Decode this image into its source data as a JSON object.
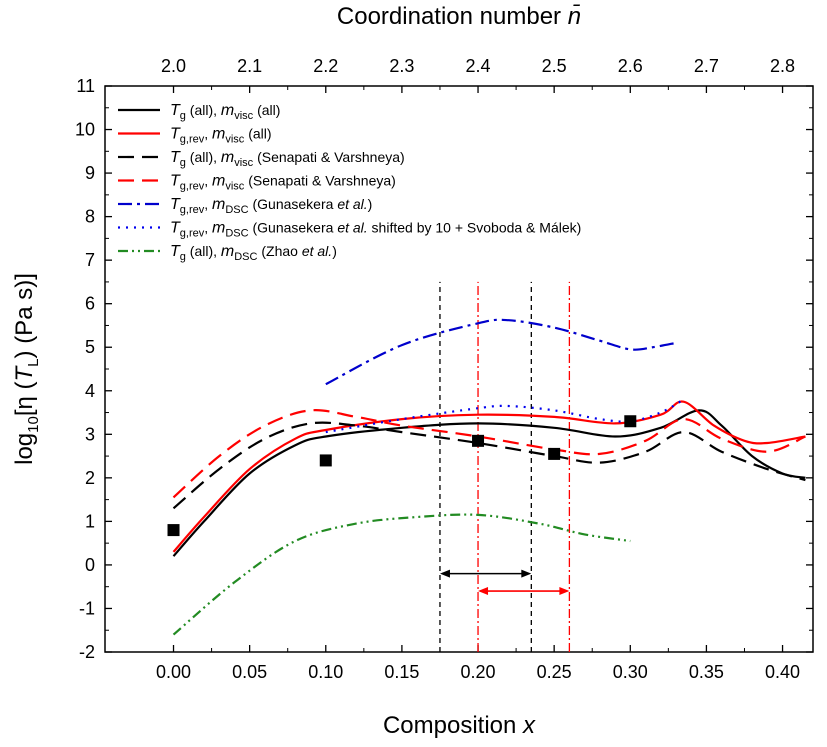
{
  "chart_data": {
    "type": "line",
    "xlabel": "Composition x",
    "ylabel_parts": {
      "pre": "log",
      "sub": "10",
      "mid": "[η (T",
      "sub2": "L",
      "post": ") (Pa s)]"
    },
    "top_xlabel": "Coordination number n̄",
    "xlim": [
      -0.045,
      0.42
    ],
    "ylim": [
      -2,
      11
    ],
    "x_ticks": [
      0.0,
      0.05,
      0.1,
      0.15,
      0.2,
      0.25,
      0.3,
      0.35,
      0.4
    ],
    "x_tick_labels": [
      "0.00",
      "0.05",
      "0.10",
      "0.15",
      "0.20",
      "0.25",
      "0.30",
      "0.35",
      "0.40"
    ],
    "y_ticks": [
      -2,
      -1,
      0,
      1,
      2,
      3,
      4,
      5,
      6,
      7,
      8,
      9,
      10,
      11
    ],
    "y_tick_labels": [
      "-2",
      "-1",
      "0",
      "1",
      "2",
      "3",
      "4",
      "5",
      "6",
      "7",
      "8",
      "9",
      "10",
      "11"
    ],
    "top_ticks": [
      2.0,
      2.1,
      2.2,
      2.3,
      2.4,
      2.5,
      2.6,
      2.7,
      2.8
    ],
    "top_tick_labels": [
      "2.0",
      "2.1",
      "2.2",
      "2.3",
      "2.4",
      "2.5",
      "2.6",
      "2.7",
      "2.8"
    ],
    "series": [
      {
        "name": "Tg (all), mvisc (all)",
        "color": "#000000",
        "dash": "solid",
        "x": [
          0.0,
          0.02,
          0.05,
          0.08,
          0.1,
          0.15,
          0.2,
          0.25,
          0.29,
          0.32,
          0.345,
          0.36,
          0.38,
          0.4,
          0.415
        ],
        "y": [
          0.2,
          1.0,
          2.1,
          2.75,
          2.95,
          3.15,
          3.25,
          3.15,
          2.95,
          3.15,
          3.55,
          3.2,
          2.5,
          2.1,
          2.0
        ]
      },
      {
        "name": "Tg,rev, mvisc (all)",
        "color": "#ff0000",
        "dash": "solid",
        "x": [
          0.0,
          0.02,
          0.05,
          0.08,
          0.1,
          0.15,
          0.2,
          0.25,
          0.29,
          0.32,
          0.335,
          0.355,
          0.375,
          0.39,
          0.415
        ],
        "y": [
          0.3,
          1.1,
          2.2,
          2.9,
          3.1,
          3.35,
          3.45,
          3.4,
          3.25,
          3.45,
          3.75,
          3.2,
          2.85,
          2.8,
          2.95
        ]
      },
      {
        "name": "Tg (all), mvisc (Senapati & Varshneya)",
        "color": "#000000",
        "dash": "16 8",
        "x": [
          0.0,
          0.03,
          0.06,
          0.09,
          0.12,
          0.15,
          0.2,
          0.25,
          0.28,
          0.31,
          0.335,
          0.36,
          0.39,
          0.415
        ],
        "y": [
          1.3,
          2.2,
          2.9,
          3.25,
          3.2,
          3.05,
          2.8,
          2.5,
          2.35,
          2.6,
          3.05,
          2.6,
          2.2,
          1.95
        ]
      },
      {
        "name": "Tg,rev, mvisc (Senapati & Varshneya)",
        "color": "#ff0000",
        "dash": "16 8",
        "x": [
          0.0,
          0.03,
          0.06,
          0.09,
          0.12,
          0.15,
          0.2,
          0.25,
          0.28,
          0.31,
          0.335,
          0.36,
          0.39,
          0.415
        ],
        "y": [
          1.55,
          2.5,
          3.2,
          3.55,
          3.4,
          3.2,
          2.95,
          2.65,
          2.55,
          2.85,
          3.35,
          2.9,
          2.6,
          2.95
        ]
      },
      {
        "name": "Tg,rev, mDSC (Gunasekera et al.)",
        "color": "#0000cc",
        "dash": "14 5 3 5",
        "x": [
          0.1,
          0.15,
          0.2,
          0.22,
          0.25,
          0.28,
          0.3,
          0.315,
          0.33
        ],
        "y": [
          4.15,
          5.05,
          5.55,
          5.62,
          5.45,
          5.15,
          4.95,
          5.0,
          5.1
        ]
      },
      {
        "name": "Tg,rev, mDSC (Gunasekera et al. shifted by 10 + Svoboda & Málek)",
        "color": "#0000ee",
        "dash": "2 6",
        "x": [
          0.1,
          0.15,
          0.2,
          0.22,
          0.25,
          0.28,
          0.3,
          0.32,
          0.335
        ],
        "y": [
          3.05,
          3.35,
          3.6,
          3.65,
          3.55,
          3.35,
          3.3,
          3.5,
          3.8
        ]
      },
      {
        "name": "Tg (all), mDSC (Zhao et al.)",
        "color": "#228b22",
        "dash": "10 4 2 4 2 4",
        "x": [
          0.0,
          0.04,
          0.08,
          0.12,
          0.16,
          0.2,
          0.24,
          0.27,
          0.3
        ],
        "y": [
          -1.6,
          -0.4,
          0.55,
          0.95,
          1.1,
          1.15,
          0.95,
          0.7,
          0.55
        ]
      }
    ],
    "points": {
      "name": "experimental",
      "color": "#000000",
      "x": [
        0.0,
        0.1,
        0.2,
        0.25,
        0.3
      ],
      "y": [
        0.8,
        2.4,
        2.85,
        2.55,
        3.3
      ]
    },
    "vlines": [
      {
        "x": 0.175,
        "color": "#000000",
        "dash": "5 4",
        "ymin": -2,
        "ymax": 6.5
      },
      {
        "x": 0.235,
        "color": "#000000",
        "dash": "5 4",
        "ymin": -2,
        "ymax": 6.5
      },
      {
        "x": 0.2,
        "color": "#ff0000",
        "dash": "9 3 2 3",
        "ymin": -2,
        "ymax": 6.5
      },
      {
        "x": 0.26,
        "color": "#ff0000",
        "dash": "9 3 2 3",
        "ymin": -2,
        "ymax": 6.5
      }
    ],
    "arrows": [
      {
        "x1": 0.175,
        "x2": 0.235,
        "y": -0.2,
        "color": "#000000"
      },
      {
        "x1": 0.2,
        "x2": 0.26,
        "y": -0.6,
        "color": "#ff0000"
      }
    ],
    "legend": {
      "position": "top-left",
      "entries": [
        {
          "color": "#000000",
          "dash": "solid",
          "a": "T",
          "a_sub": "g",
          "b": " (all), ",
          "c": "m",
          "c_sub": "visc",
          "d": " (all)",
          "e_italic": "",
          "f": ""
        },
        {
          "color": "#ff0000",
          "dash": "solid",
          "a": "T",
          "a_sub": "g,rev",
          "b": ", ",
          "c": "m",
          "c_sub": "visc",
          "d": " (all)",
          "e_italic": "",
          "f": ""
        },
        {
          "color": "#000000",
          "dash": "16 8",
          "a": "T",
          "a_sub": "g",
          "b": " (all), ",
          "c": "m",
          "c_sub": "visc",
          "d": " (Senapati & Varshneya)",
          "e_italic": "",
          "f": ""
        },
        {
          "color": "#ff0000",
          "dash": "16 8",
          "a": "T",
          "a_sub": "g,rev",
          "b": ", ",
          "c": "m",
          "c_sub": "visc",
          "d": " (Senapati & Varshneya)",
          "e_italic": "",
          "f": ""
        },
        {
          "color": "#0000cc",
          "dash": "14 5 3 5",
          "a": "T",
          "a_sub": "g,rev",
          "b": ", ",
          "c": "m",
          "c_sub": "DSC",
          "d": " (Gunasekera ",
          "e_italic": "et al.",
          "f": ")"
        },
        {
          "color": "#0000ee",
          "dash": "2 6",
          "a": "T",
          "a_sub": "g,rev",
          "b": ", ",
          "c": "m",
          "c_sub": "DSC",
          "d": " (Gunasekera ",
          "e_italic": "et al.",
          "f": " shifted by 10 + Svoboda & Málek)"
        },
        {
          "color": "#228b22",
          "dash": "10 4 2 4 2 4",
          "a": "T",
          "a_sub": "g",
          "b": " (all), ",
          "c": "m",
          "c_sub": "DSC",
          "d": " (Zhao ",
          "e_italic": "et al.",
          "f": ")"
        }
      ]
    }
  }
}
